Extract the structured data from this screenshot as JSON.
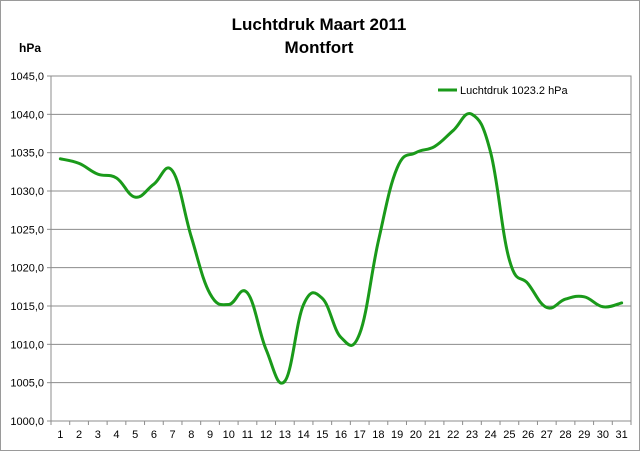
{
  "chart_data": {
    "type": "line",
    "title": [
      "Luchtdruk Maart 2011",
      "Montfort"
    ],
    "ylabel": "hPa",
    "xlabel": "",
    "ylim": [
      1000,
      1045
    ],
    "yticks": [
      "1000,0",
      "1005,0",
      "1010,0",
      "1015,0",
      "1020,0",
      "1025,0",
      "1030,0",
      "1035,0",
      "1040,0",
      "1045,0"
    ],
    "categories": [
      "1",
      "2",
      "3",
      "4",
      "5",
      "6",
      "7",
      "8",
      "9",
      "10",
      "11",
      "12",
      "13",
      "14",
      "15",
      "16",
      "17",
      "18",
      "19",
      "20",
      "21",
      "22",
      "23",
      "24",
      "25",
      "26",
      "27",
      "28",
      "29",
      "30",
      "31"
    ],
    "series": [
      {
        "name": "Luchtdruk 1023.2 hPa",
        "color": "#1a9a1a",
        "values": [
          1034.2,
          1033.6,
          1032.2,
          1031.7,
          1029.2,
          1030.9,
          1032.6,
          1024.0,
          1016.6,
          1015.2,
          1016.7,
          1009.3,
          1005.2,
          1015.2,
          1016.0,
          1010.9,
          1011.4,
          1023.5,
          1033.0,
          1035.0,
          1035.8,
          1037.9,
          1040.0,
          1035.0,
          1021.0,
          1017.9,
          1014.8,
          1015.9,
          1016.2,
          1014.9,
          1015.4
        ]
      }
    ],
    "grid": "horizontal",
    "legend": "top-right"
  }
}
